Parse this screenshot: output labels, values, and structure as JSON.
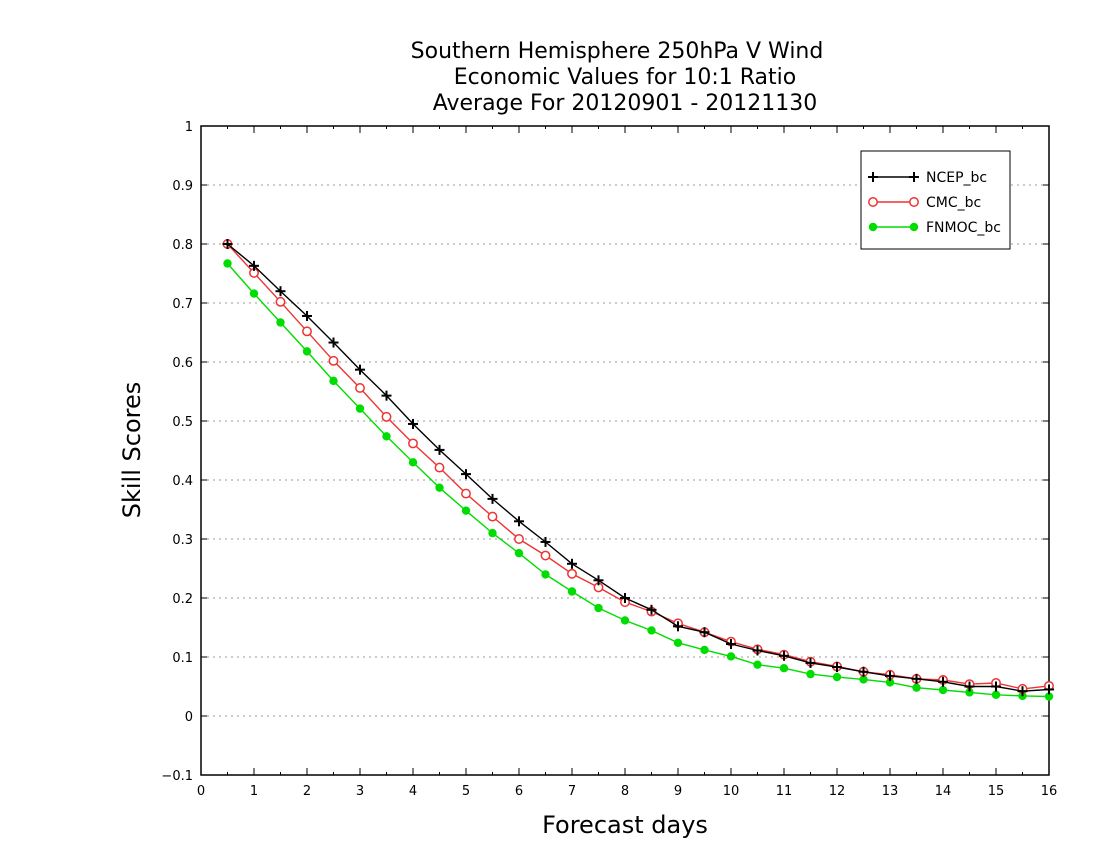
{
  "chart_data": {
    "type": "line",
    "title_lines": [
      "Southern Hemisphere 250hPa V Wind",
      "Economic Values for 10:1 Ratio",
      "Average For 20120901 - 20121130"
    ],
    "xlabel": "Forecast days",
    "ylabel": "Skill Scores",
    "xlim": [
      0,
      16
    ],
    "ylim": [
      -0.1,
      1
    ],
    "x_ticks": [
      "0",
      "1",
      "2",
      "3",
      "4",
      "5",
      "6",
      "7",
      "8",
      "9",
      "10",
      "11",
      "12",
      "13",
      "14",
      "15",
      "16"
    ],
    "y_ticks": [
      "−0.1",
      "0",
      "0.1",
      "0.2",
      "0.3",
      "0.4",
      "0.5",
      "0.6",
      "0.7",
      "0.8",
      "0.9",
      "1"
    ],
    "grid": "horizontal dotted",
    "legend_position": "top-right",
    "x": [
      0.5,
      1,
      1.5,
      2,
      2.5,
      3,
      3.5,
      4,
      4.5,
      5,
      5.5,
      6,
      6.5,
      7,
      7.5,
      8,
      8.5,
      9,
      9.5,
      10,
      10.5,
      11,
      11.5,
      12,
      12.5,
      13,
      13.5,
      14,
      14.5,
      15,
      15.5,
      16
    ],
    "series": [
      {
        "name": "NCEP_bc",
        "color": "#000000",
        "marker": "plus",
        "values": [
          0.8,
          0.763,
          0.72,
          0.678,
          0.633,
          0.587,
          0.543,
          0.495,
          0.451,
          0.41,
          0.368,
          0.33,
          0.295,
          0.258,
          0.23,
          0.2,
          0.18,
          0.152,
          0.142,
          0.122,
          0.111,
          0.102,
          0.09,
          0.083,
          0.075,
          0.068,
          0.063,
          0.058,
          0.05,
          0.05,
          0.042,
          0.045
        ]
      },
      {
        "name": "CMC_bc",
        "color": "#ee3333",
        "marker": "open-circle",
        "values": [
          0.8,
          0.751,
          0.702,
          0.652,
          0.602,
          0.556,
          0.507,
          0.462,
          0.421,
          0.377,
          0.338,
          0.3,
          0.272,
          0.241,
          0.218,
          0.193,
          0.177,
          0.157,
          0.142,
          0.126,
          0.113,
          0.104,
          0.092,
          0.084,
          0.075,
          0.07,
          0.063,
          0.061,
          0.054,
          0.056,
          0.046,
          0.051
        ]
      },
      {
        "name": "FNMOC_bc",
        "color": "#00dd00",
        "marker": "filled-circle",
        "values": [
          0.767,
          0.716,
          0.667,
          0.618,
          0.568,
          0.521,
          0.474,
          0.43,
          0.387,
          0.348,
          0.31,
          0.276,
          0.24,
          0.211,
          0.183,
          0.162,
          0.145,
          0.124,
          0.112,
          0.101,
          0.087,
          0.081,
          0.071,
          0.066,
          0.062,
          0.057,
          0.048,
          0.044,
          0.04,
          0.036,
          0.034,
          0.033
        ]
      }
    ]
  }
}
